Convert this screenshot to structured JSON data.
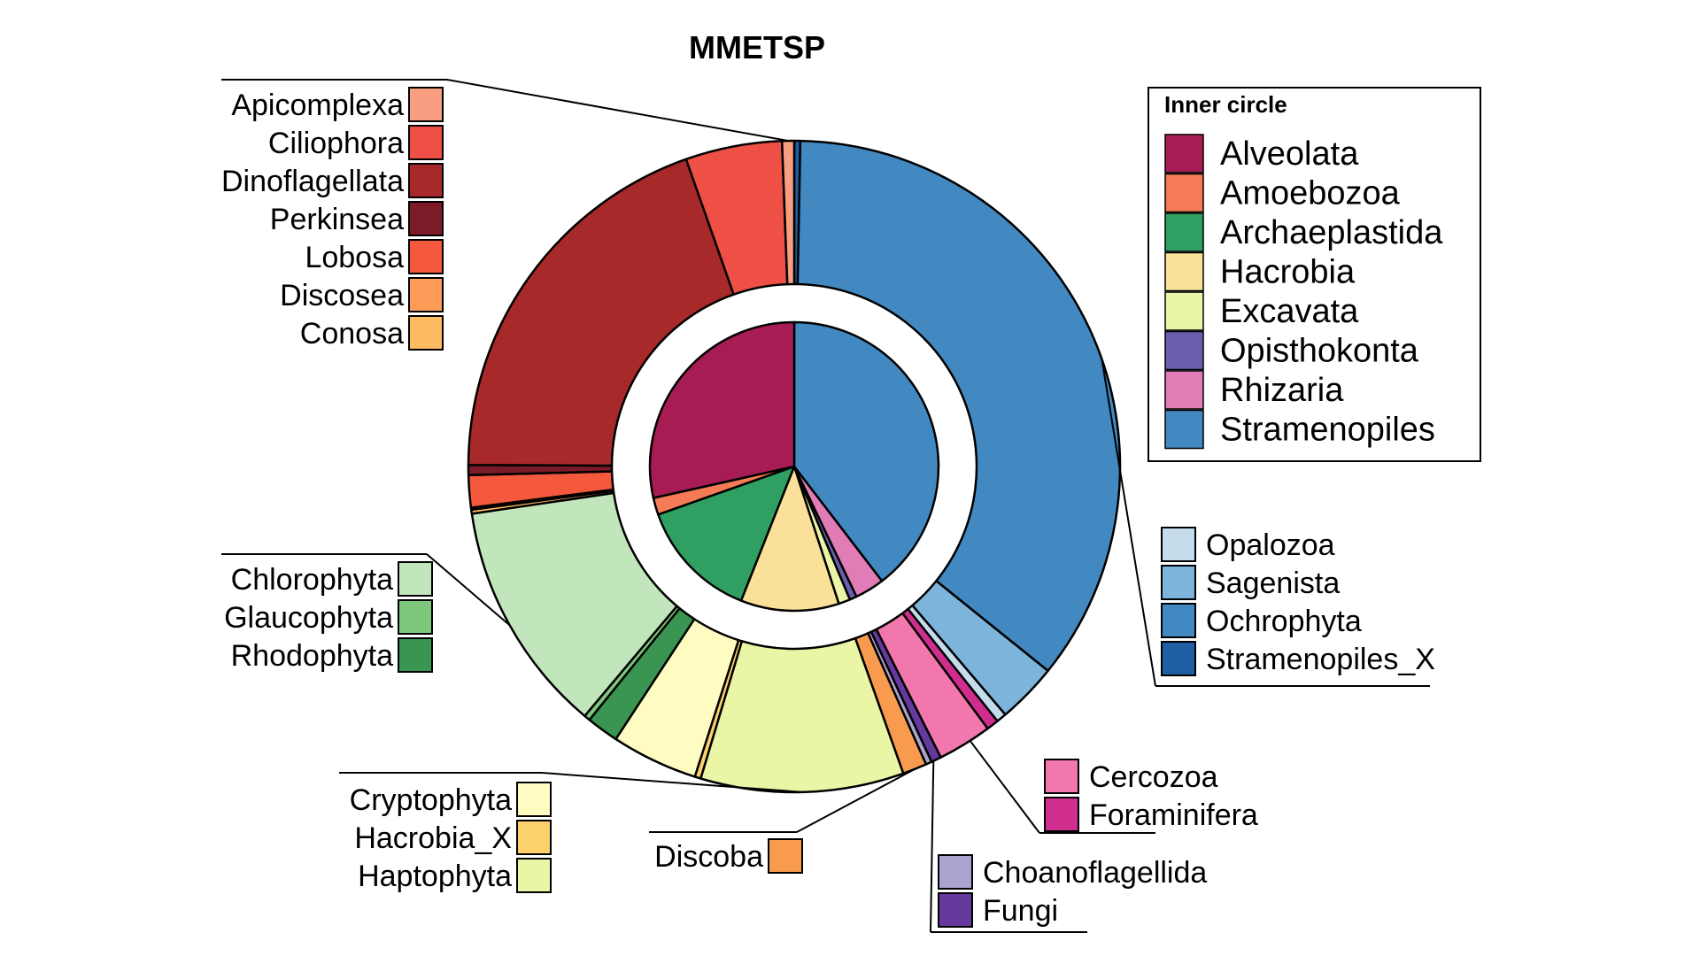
{
  "chart_data": {
    "type": "pie",
    "title": "MMETSP",
    "legend": {
      "title": "Inner circle",
      "placement": "top-right",
      "items": [
        {
          "name": "Alveolata",
          "color": "#a81c54"
        },
        {
          "name": "Amoebozoa",
          "color": "#f47b55"
        },
        {
          "name": "Archaeplastida",
          "color": "#2f9f62"
        },
        {
          "name": "Hacrobia",
          "color": "#fbe09a"
        },
        {
          "name": "Excavata",
          "color": "#eaf5a6"
        },
        {
          "name": "Opisthokonta",
          "color": "#6a5fae"
        },
        {
          "name": "Rhizaria",
          "color": "#e27cb6"
        },
        {
          "name": "Stramenopiles",
          "color": "#4289c2"
        }
      ]
    },
    "inner": [
      {
        "name": "Stramenopiles",
        "value": 39.6,
        "color": "#4289c2"
      },
      {
        "name": "Rhizaria",
        "value": 3.3,
        "color": "#e27cb6"
      },
      {
        "name": "Opisthokonta",
        "value": 0.8,
        "color": "#6a5fae"
      },
      {
        "name": "Excavata",
        "value": 1.3,
        "color": "#eaf5a6"
      },
      {
        "name": "Hacrobia",
        "value": 11.0,
        "color": "#fbe09a"
      },
      {
        "name": "Archaeplastida",
        "value": 13.6,
        "color": "#2f9f62"
      },
      {
        "name": "Amoebozoa",
        "value": 1.9,
        "color": "#f47b55"
      },
      {
        "name": "Alveolata",
        "value": 28.5,
        "color": "#a81c54"
      }
    ],
    "outer": [
      {
        "name": "Stramenopiles_X",
        "value": 0.3,
        "color": "#1f5fa3"
      },
      {
        "name": "Ochrophyta",
        "value": 35.6,
        "color": "#4289c2"
      },
      {
        "name": "Sagenista",
        "value": 3.0,
        "color": "#7db4dc"
      },
      {
        "name": "Opalozoa",
        "value": 0.5,
        "color": "#c5dced"
      },
      {
        "name": "Foraminifera",
        "value": 0.6,
        "color": "#d02e8e"
      },
      {
        "name": "Cercozoa",
        "value": 2.7,
        "color": "#f277ad"
      },
      {
        "name": "Fungi",
        "value": 0.5,
        "color": "#66399c"
      },
      {
        "name": "Choanoflagellida",
        "value": 0.3,
        "color": "#aaa3d0"
      },
      {
        "name": "Discoba",
        "value": 1.2,
        "color": "#f99b4e"
      },
      {
        "name": "Haptophyta",
        "value": 10.1,
        "color": "#eaf5a6"
      },
      {
        "name": "Hacrobia_X",
        "value": 0.3,
        "color": "#fdd26d"
      },
      {
        "name": "Cryptophyta",
        "value": 4.3,
        "color": "#fefcc0"
      },
      {
        "name": "Rhodophyta",
        "value": 1.6,
        "color": "#3a9552"
      },
      {
        "name": "Glaucophyta",
        "value": 0.3,
        "color": "#7ec87e"
      },
      {
        "name": "Chlorophyta",
        "value": 11.6,
        "color": "#c2e6bb"
      },
      {
        "name": "Conosa",
        "value": 0.2,
        "color": "#fdbb62"
      },
      {
        "name": "Discosea",
        "value": 0.1,
        "color": "#fd9b58"
      },
      {
        "name": "Lobosa",
        "value": 1.6,
        "color": "#f4583d"
      },
      {
        "name": "Perkinsea",
        "value": 0.5,
        "color": "#7b1a28"
      },
      {
        "name": "Dinoflagellata",
        "value": 19.6,
        "color": "#a82929"
      },
      {
        "name": "Ciliophora",
        "value": 4.8,
        "color": "#ee5045"
      },
      {
        "name": "Apicomplexa",
        "value": 0.6,
        "color": "#f99e80"
      }
    ],
    "label_groups": [
      {
        "items": [
          "Apicomplexa",
          "Ciliophora",
          "Dinoflagellata",
          "Perkinsea",
          "Lobosa",
          "Discosea",
          "Conosa"
        ]
      },
      {
        "items": [
          "Chlorophyta",
          "Glaucophyta",
          "Rhodophyta"
        ]
      },
      {
        "items": [
          "Cryptophyta",
          "Hacrobia_X",
          "Haptophyta"
        ]
      },
      {
        "items": [
          "Discoba"
        ]
      },
      {
        "items": [
          "Choanoflagellida",
          "Fungi"
        ]
      },
      {
        "items": [
          "Cercozoa",
          "Foraminifera"
        ]
      },
      {
        "items": [
          "Opalozoa",
          "Sagenista",
          "Ochrophyta",
          "Stramenopiles_X"
        ]
      }
    ]
  }
}
